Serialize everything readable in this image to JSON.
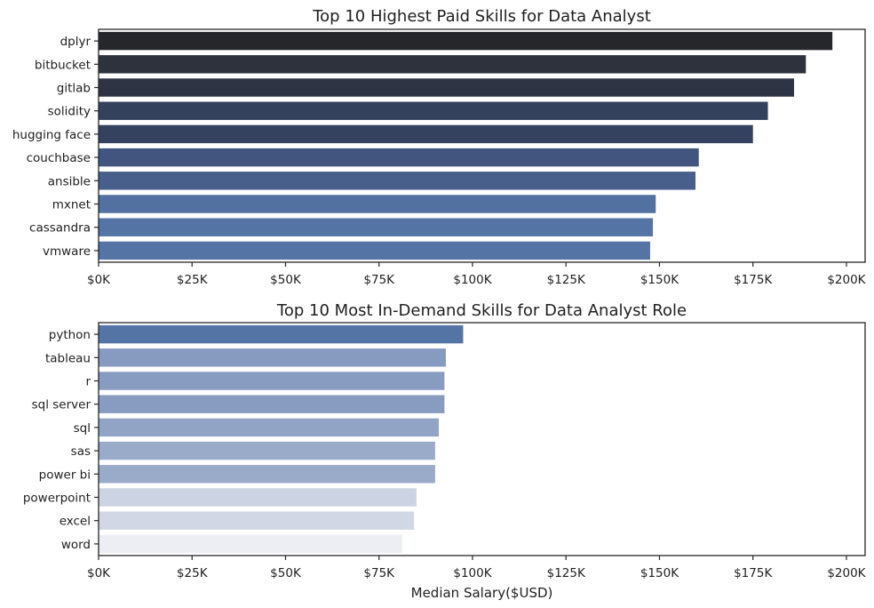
{
  "chart_data": [
    {
      "type": "bar",
      "orientation": "horizontal",
      "title": "Top 10 Highest Paid Skills for Data Analyst",
      "xlabel": "",
      "ylabel": "",
      "xlim": [
        0,
        205000
      ],
      "xticks": [
        0,
        25000,
        50000,
        75000,
        100000,
        125000,
        150000,
        175000,
        200000
      ],
      "xtick_labels": [
        "$0K",
        "$25K",
        "$50K",
        "$75K",
        "$100K",
        "$125K",
        "$150K",
        "$175K",
        "$200K"
      ],
      "grid": false,
      "categories": [
        "dplyr",
        "bitbucket",
        "gitlab",
        "solidity",
        "hugging face",
        "couchbase",
        "ansible",
        "mxnet",
        "cassandra",
        "vmware"
      ],
      "values": [
        196250,
        189155,
        186000,
        179000,
        175000,
        160515,
        159640,
        149000,
        148250,
        147500
      ],
      "colors": [
        "#26272b",
        "#2d323d",
        "#2e3444",
        "#34415c",
        "#35425f",
        "#41557f",
        "#495f8b",
        "#5271a0",
        "#5474a5",
        "#5574a6"
      ]
    },
    {
      "type": "bar",
      "orientation": "horizontal",
      "title": "Top 10 Most In-Demand Skills for Data Analyst Role",
      "xlabel": "Median Salary($USD)",
      "ylabel": "",
      "xlim": [
        0,
        205000
      ],
      "xticks": [
        0,
        25000,
        50000,
        75000,
        100000,
        125000,
        150000,
        175000,
        200000
      ],
      "xtick_labels": [
        "$0K",
        "$25K",
        "$50K",
        "$75K",
        "$100K",
        "$125K",
        "$150K",
        "$175K",
        "$200K"
      ],
      "grid": false,
      "categories": [
        "python",
        "tableau",
        "r",
        "sql server",
        "sql",
        "sas",
        "power bi",
        "powerpoint",
        "excel",
        "word"
      ],
      "values": [
        97500,
        92875,
        92500,
        92500,
        91000,
        90000,
        90000,
        85000,
        84392,
        81194
      ],
      "colors": [
        "#5574a6",
        "#879ac0",
        "#889bc0",
        "#889bc0",
        "#92a4c5",
        "#9aabca",
        "#9aabca",
        "#ccd3e2",
        "#d1d7e4",
        "#eceef3"
      ]
    }
  ]
}
